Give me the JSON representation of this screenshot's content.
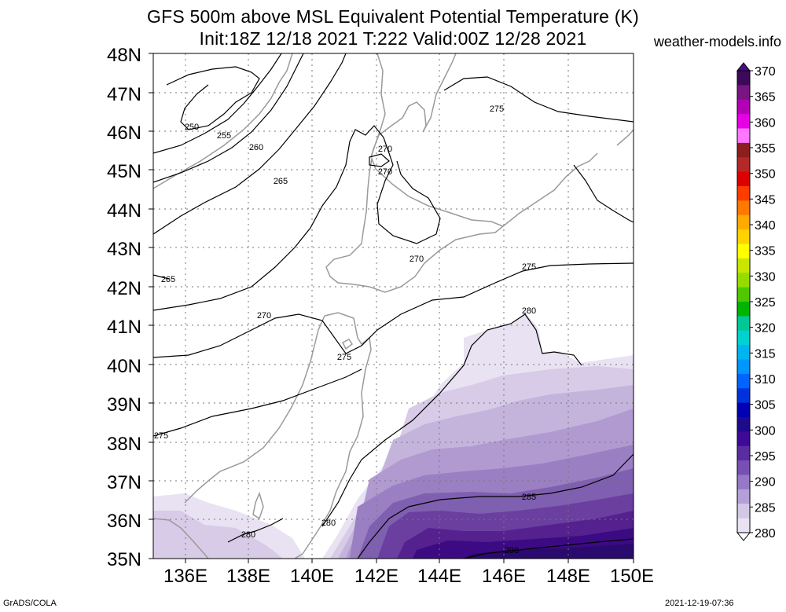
{
  "title": "GFS 500m above MSL Equivalent Potential Temperature (K)",
  "subtitle": "Init:18Z 12/18 2021 T:222 Valid:00Z 12/28 2021",
  "site": "weather-models.info",
  "footer_left": "GrADS/COLA",
  "footer_right": "2021-12-19-07:36",
  "lat_labels": [
    "48N",
    "47N",
    "46N",
    "45N",
    "44N",
    "43N",
    "42N",
    "41N",
    "40N",
    "39N",
    "38N",
    "37N",
    "36N",
    "35N"
  ],
  "lon_labels": [
    "136E",
    "138E",
    "140E",
    "142E",
    "144E",
    "146E",
    "148E",
    "150E"
  ],
  "contour_labels": {
    "c250": "250",
    "c255": "255",
    "c260": "260",
    "c265a": "265",
    "c265b": "265",
    "c270a": "270",
    "c270b": "270",
    "c270c": "270",
    "c270d": "270",
    "c275a": "275",
    "c275b": "275",
    "c275c": "275",
    "c275d": "275",
    "c280a": "280",
    "c280b": "280",
    "c280c": "280",
    "c285": "285",
    "c290": "290"
  },
  "colorbar": {
    "labels": [
      "370",
      "365",
      "360",
      "355",
      "350",
      "345",
      "340",
      "335",
      "330",
      "325",
      "320",
      "315",
      "310",
      "305",
      "300",
      "295",
      "290",
      "285",
      "280"
    ],
    "colors": [
      "#3c0a5a",
      "#7a1482",
      "#b400b4",
      "#e600e6",
      "#ff78ff",
      "#8c1e1e",
      "#b42828",
      "#dc0000",
      "#ff3c00",
      "#ff7800",
      "#ffaa00",
      "#ffd200",
      "#ffff00",
      "#c8e600",
      "#96dc00",
      "#50c800",
      "#00b400",
      "#00c896",
      "#00d2d2",
      "#00b4f0",
      "#0096ff",
      "#0064ff",
      "#0032dc",
      "#0000b4",
      "#1e0a8c",
      "#3c0a96",
      "#5a2ca0",
      "#7850b4",
      "#9678c8",
      "#b4a0d7",
      "#d2c8e6",
      "#e8e2f2"
    ],
    "accent": "#4b0a8c"
  }
}
